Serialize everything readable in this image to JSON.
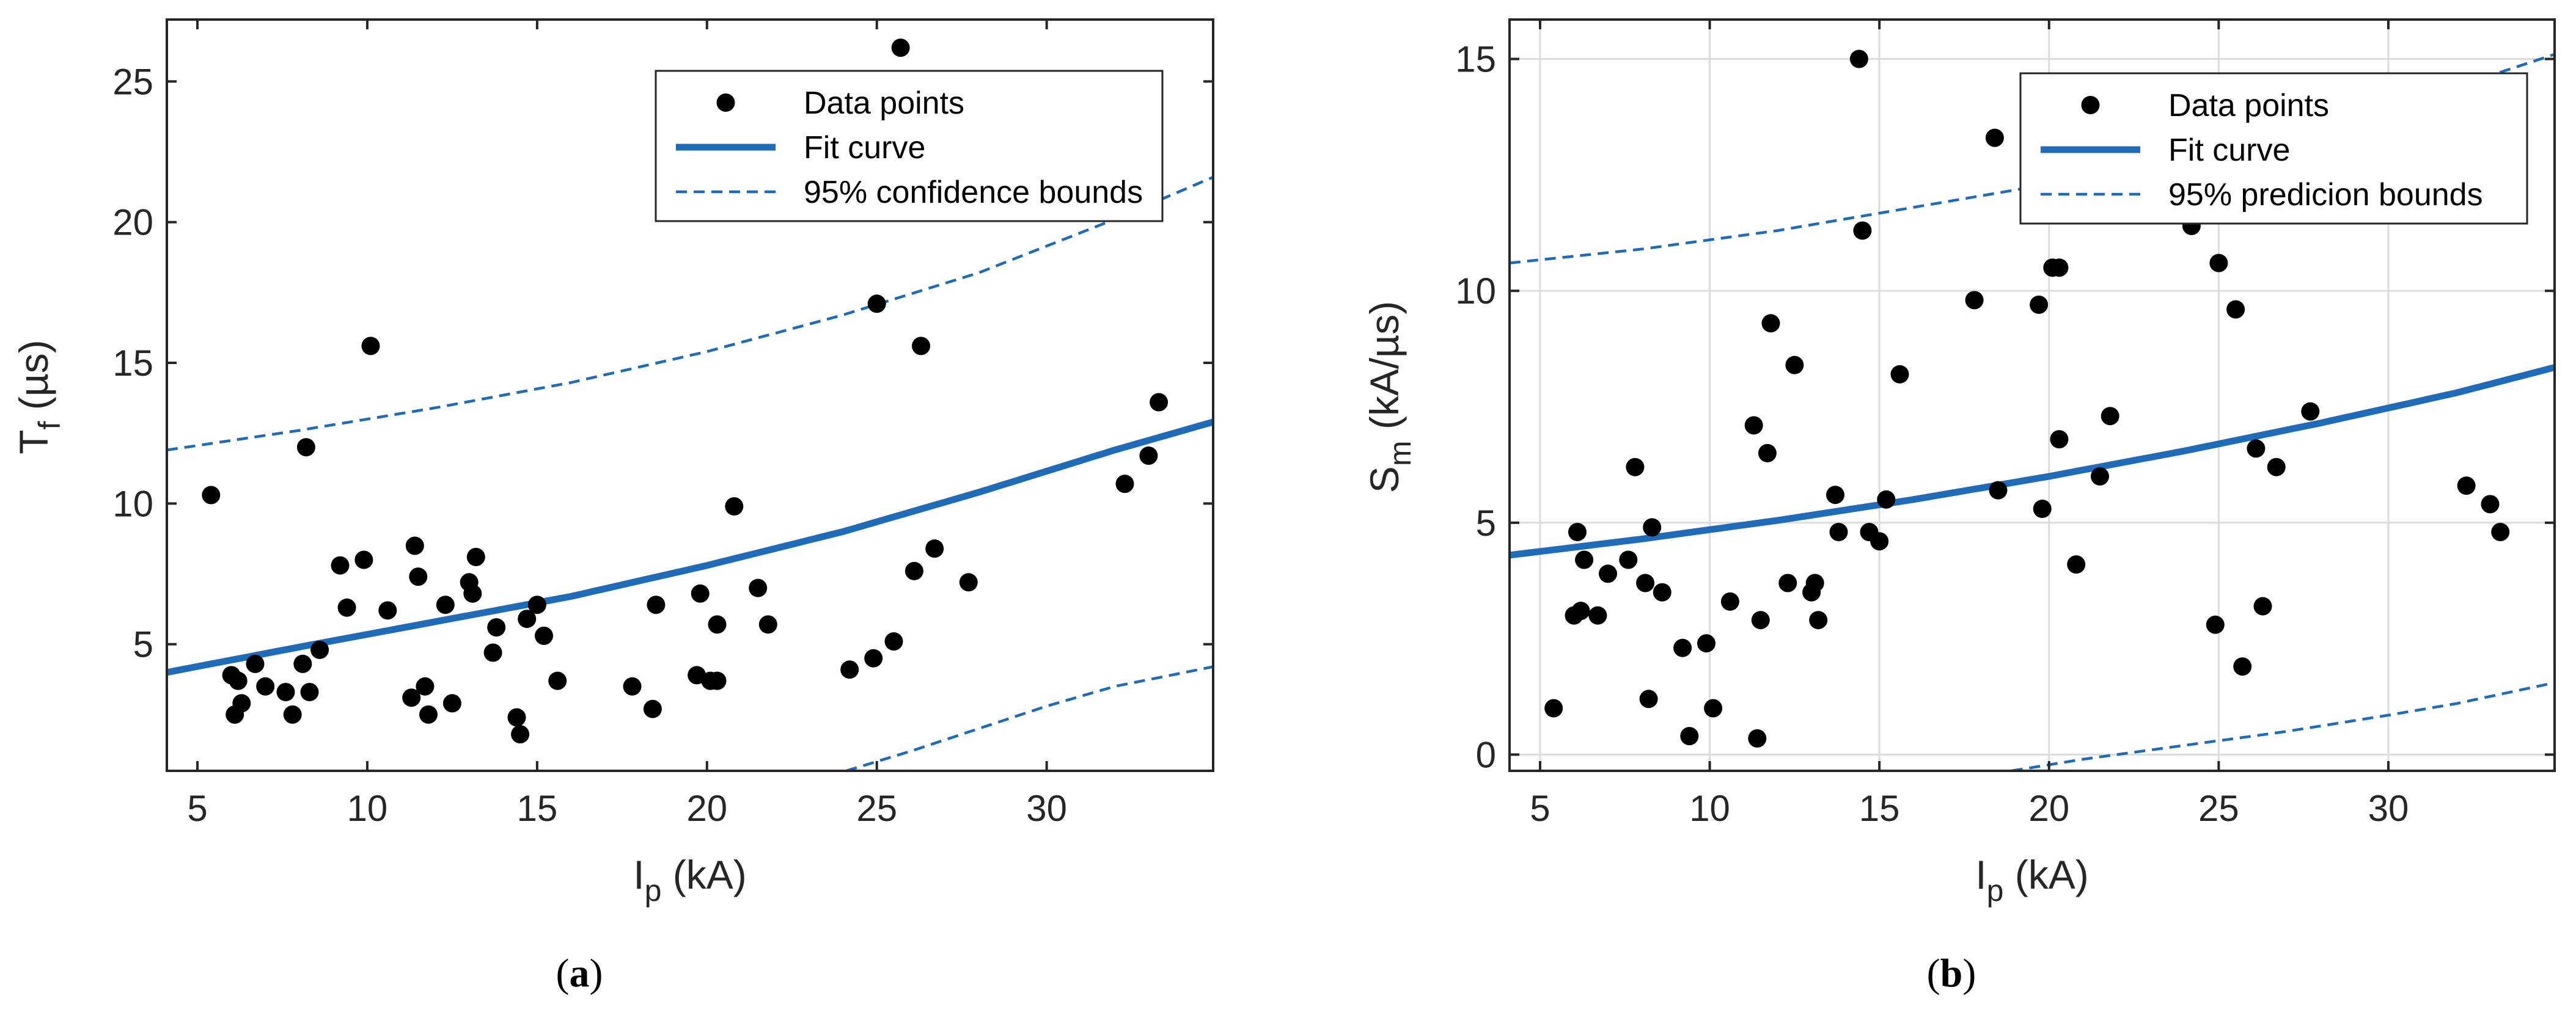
{
  "chart_data": [
    {
      "type": "scatter",
      "caption": "(a)",
      "xlabel_main": "I",
      "xlabel_sub": "p",
      "xlabel_rest": " (kA)",
      "ylabel_main": "T",
      "ylabel_sub": "f",
      "ylabel_rest": " (µs)",
      "xlim": [
        4.1,
        34.9
      ],
      "ylim": [
        0.5,
        27.2
      ],
      "xticks": [
        5,
        10,
        15,
        20,
        25,
        30
      ],
      "xtick_labels": [
        "5",
        "10",
        "15",
        "20",
        "25",
        "30"
      ],
      "yticks": [
        5,
        10,
        15,
        20,
        25
      ],
      "ytick_labels": [
        "5",
        "10",
        "15",
        "20",
        "25"
      ],
      "grid": false,
      "legend_position": "top-right",
      "legend": {
        "points_label": "Data points",
        "fit_label": "Fit curve",
        "bounds_label": "95% confidence bounds"
      },
      "series": [
        {
          "name": "Data points",
          "kind": "points",
          "x": [
            5.4,
            6.0,
            6.1,
            6.2,
            6.3,
            6.7,
            7.0,
            7.6,
            7.8,
            8.1,
            8.2,
            8.3,
            8.6,
            9.2,
            9.4,
            9.9,
            10.1,
            10.6,
            11.3,
            11.4,
            11.5,
            11.7,
            11.8,
            12.3,
            12.5,
            13.0,
            13.1,
            13.2,
            13.7,
            13.8,
            14.4,
            14.5,
            14.7,
            15.0,
            15.2,
            15.6,
            17.8,
            18.4,
            18.5,
            19.7,
            19.8,
            20.1,
            20.3,
            20.3,
            20.8,
            21.5,
            21.8,
            24.2,
            24.9,
            25.0,
            25.5,
            25.7,
            26.1,
            26.3,
            26.7,
            27.7,
            32.3,
            33.0,
            33.3
          ],
          "y": [
            10.3,
            3.9,
            2.5,
            3.7,
            2.9,
            4.3,
            3.5,
            3.3,
            2.5,
            4.3,
            12.0,
            3.3,
            4.8,
            7.8,
            6.3,
            8.0,
            15.6,
            6.2,
            3.1,
            8.5,
            7.4,
            3.5,
            2.5,
            6.4,
            2.9,
            7.2,
            6.8,
            8.1,
            4.7,
            5.6,
            2.4,
            1.8,
            5.9,
            6.4,
            5.3,
            3.7,
            3.5,
            2.7,
            6.4,
            3.9,
            6.8,
            3.7,
            5.7,
            3.7,
            9.9,
            7.0,
            5.7,
            4.1,
            4.5,
            17.1,
            5.1,
            26.2,
            7.6,
            15.6,
            8.4,
            7.2,
            10.7,
            11.7,
            13.6
          ]
        },
        {
          "name": "Fit curve",
          "kind": "line",
          "x": [
            4.1,
            8,
            12,
            16,
            20,
            24,
            28,
            32,
            34.9
          ],
          "y": [
            4.0,
            4.9,
            5.8,
            6.7,
            7.8,
            9.0,
            10.4,
            11.9,
            12.9
          ]
        },
        {
          "name": "95% confidence bounds (upper)",
          "kind": "dashed",
          "x": [
            4.1,
            8,
            12,
            16,
            20,
            24,
            28,
            32,
            34.9
          ],
          "y": [
            11.9,
            12.6,
            13.4,
            14.3,
            15.4,
            16.7,
            18.2,
            20.1,
            21.6
          ]
        },
        {
          "name": "95% confidence bounds (lower)",
          "kind": "dashed",
          "x": [
            24.1,
            26,
            28,
            30,
            32,
            34.9
          ],
          "y": [
            0.5,
            1.2,
            2.0,
            2.8,
            3.5,
            4.2
          ]
        }
      ]
    },
    {
      "type": "scatter",
      "caption": "(b)",
      "xlabel_main": "I",
      "xlabel_sub": "p",
      "xlabel_rest": " (kA)",
      "ylabel_main": "S",
      "ylabel_sub": "m",
      "ylabel_rest": " (kA/µs)",
      "xlim": [
        4.1,
        34.9
      ],
      "ylim": [
        -0.35,
        15.85
      ],
      "xticks": [
        5,
        10,
        15,
        20,
        25,
        30
      ],
      "xtick_labels": [
        "5",
        "10",
        "15",
        "20",
        "25",
        "30"
      ],
      "yticks": [
        0,
        5,
        10,
        15
      ],
      "ytick_labels": [
        "0",
        "5",
        "10",
        "15"
      ],
      "grid": true,
      "legend_position": "top-right",
      "legend": {
        "points_label": "Data points",
        "fit_label": "Fit curve",
        "bounds_label": "95% predicion bounds"
      },
      "series": [
        {
          "name": "Data points",
          "kind": "points",
          "x": [
            5.4,
            6.0,
            6.1,
            6.2,
            6.3,
            6.7,
            7.0,
            7.6,
            7.8,
            8.1,
            8.2,
            8.3,
            8.6,
            9.2,
            9.4,
            9.9,
            10.1,
            10.6,
            11.3,
            11.4,
            11.5,
            11.7,
            11.8,
            12.3,
            12.5,
            13.0,
            13.1,
            13.2,
            13.7,
            13.8,
            14.4,
            14.5,
            14.7,
            15.0,
            15.2,
            15.6,
            17.8,
            18.4,
            18.5,
            19.7,
            19.8,
            20.1,
            20.3,
            20.3,
            20.8,
            21.5,
            21.8,
            24.2,
            24.9,
            25.0,
            25.5,
            25.7,
            26.1,
            26.3,
            26.7,
            27.7,
            32.3,
            33.0,
            33.3
          ],
          "y": [
            1.0,
            3.0,
            4.8,
            3.1,
            4.2,
            3.0,
            3.9,
            4.2,
            6.2,
            3.7,
            1.2,
            4.9,
            3.5,
            2.3,
            0.4,
            2.4,
            1.0,
            3.3,
            7.1,
            0.35,
            2.9,
            6.5,
            9.3,
            3.7,
            8.4,
            3.5,
            3.7,
            2.9,
            5.6,
            4.8,
            15.0,
            11.3,
            4.8,
            4.6,
            5.5,
            8.2,
            9.8,
            13.3,
            5.7,
            9.7,
            5.3,
            10.5,
            10.5,
            6.8,
            4.1,
            6.0,
            7.3,
            11.4,
            2.8,
            10.6,
            9.6,
            1.9,
            6.6,
            3.2,
            6.2,
            7.4,
            5.8,
            5.4,
            4.8
          ]
        },
        {
          "name": "Fit curve",
          "kind": "line",
          "x": [
            4.1,
            8,
            12,
            16,
            20,
            24,
            28,
            32,
            34.9
          ],
          "y": [
            4.3,
            4.65,
            5.05,
            5.5,
            6.0,
            6.55,
            7.15,
            7.8,
            8.35
          ]
        },
        {
          "name": "95% predicion bounds (upper)",
          "kind": "dashed",
          "x": [
            4.1,
            8,
            12,
            16,
            20,
            24,
            28,
            32,
            34.9
          ],
          "y": [
            10.6,
            10.9,
            11.3,
            11.8,
            12.3,
            12.9,
            13.6,
            14.4,
            15.1
          ]
        },
        {
          "name": "95% predicion bounds (lower)",
          "kind": "dashed",
          "x": [
            18.9,
            21,
            24,
            27,
            30,
            32,
            34.9
          ],
          "y": [
            -0.35,
            -0.1,
            0.2,
            0.5,
            0.85,
            1.1,
            1.55
          ]
        }
      ]
    }
  ],
  "colors": {
    "points": "#000000",
    "fit": "#1F6BB8",
    "bounds": "#1F6BB8",
    "grid": "#DCDCDC",
    "axes": "#262626"
  }
}
